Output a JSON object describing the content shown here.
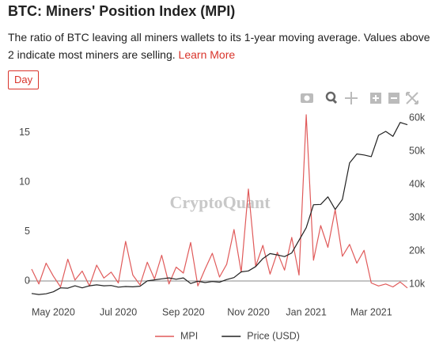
{
  "header": {
    "title": "BTC: Miners' Position Index (MPI)",
    "description": "The ratio of BTC leaving all miners wallets to its 1-year moving average. Values above 2 indicate most miners are selling.",
    "link": "Learn More"
  },
  "controls": {
    "range": "Day"
  },
  "chart_data": {
    "type": "line",
    "watermark": "CryptoQuant",
    "categories": [
      null,
      null,
      null,
      "May 2020",
      null,
      null,
      null,
      null,
      null,
      null,
      null,
      null,
      "Jul 2020",
      null,
      null,
      null,
      null,
      null,
      null,
      null,
      null,
      "Sep 2020",
      null,
      null,
      null,
      null,
      null,
      null,
      null,
      null,
      "Nov 2020",
      null,
      null,
      null,
      null,
      null,
      null,
      null,
      "Jan 2021",
      null,
      null,
      null,
      null,
      null,
      null,
      null,
      null,
      "Mar 2021",
      null,
      null,
      null,
      null,
      null
    ],
    "series": [
      {
        "name": "MPI",
        "color": "#e05a5a",
        "values": [
          1.2,
          -0.3,
          1.8,
          0.5,
          -0.6,
          2.2,
          0.1,
          1.0,
          -0.5,
          1.6,
          0.3,
          0.9,
          -0.2,
          4.0,
          0.6,
          -0.4,
          1.9,
          0.2,
          2.6,
          -0.3,
          1.4,
          0.8,
          3.9,
          -0.5,
          1.2,
          2.8,
          0.4,
          1.7,
          5.2,
          0.9,
          9.3,
          1.5,
          3.6,
          0.7,
          2.9,
          1.1,
          4.4,
          0.6,
          16.8,
          2.1,
          5.6,
          3.4,
          7.2,
          2.5,
          3.7,
          1.8,
          3.1,
          -0.2,
          -0.5,
          -0.3,
          -0.6,
          -0.1,
          -0.7
        ]
      },
      {
        "name": "Price (USD)",
        "color": "#222222",
        "axis": "y2",
        "values": [
          7200,
          6900,
          7100,
          7700,
          8900,
          8800,
          9500,
          8900,
          9500,
          9800,
          9500,
          9600,
          9100,
          9300,
          9200,
          9400,
          11000,
          11300,
          11600,
          11900,
          11500,
          11900,
          10200,
          10900,
          10500,
          10800,
          10600,
          11400,
          12000,
          13700,
          14000,
          15300,
          17700,
          19200,
          18800,
          18300,
          19400,
          23200,
          27000,
          33900,
          34000,
          36300,
          32500,
          35500,
          46500,
          49200,
          48900,
          48400,
          54800,
          56000,
          54500,
          58700,
          58000
        ]
      }
    ],
    "ylim": [
      -1.6,
      16.8
    ],
    "yticks": [
      0,
      5,
      10,
      15
    ],
    "y2lim": [
      6200,
      61000
    ],
    "y2ticks": [
      {
        "value": 10000,
        "label": "10k"
      },
      {
        "value": 20000,
        "label": "20k"
      },
      {
        "value": 30000,
        "label": "30k"
      },
      {
        "value": 40000,
        "label": "40k"
      },
      {
        "value": 50000,
        "label": "50k"
      },
      {
        "value": 60000,
        "label": "60k"
      }
    ],
    "grid": false,
    "legend": "bottom"
  }
}
